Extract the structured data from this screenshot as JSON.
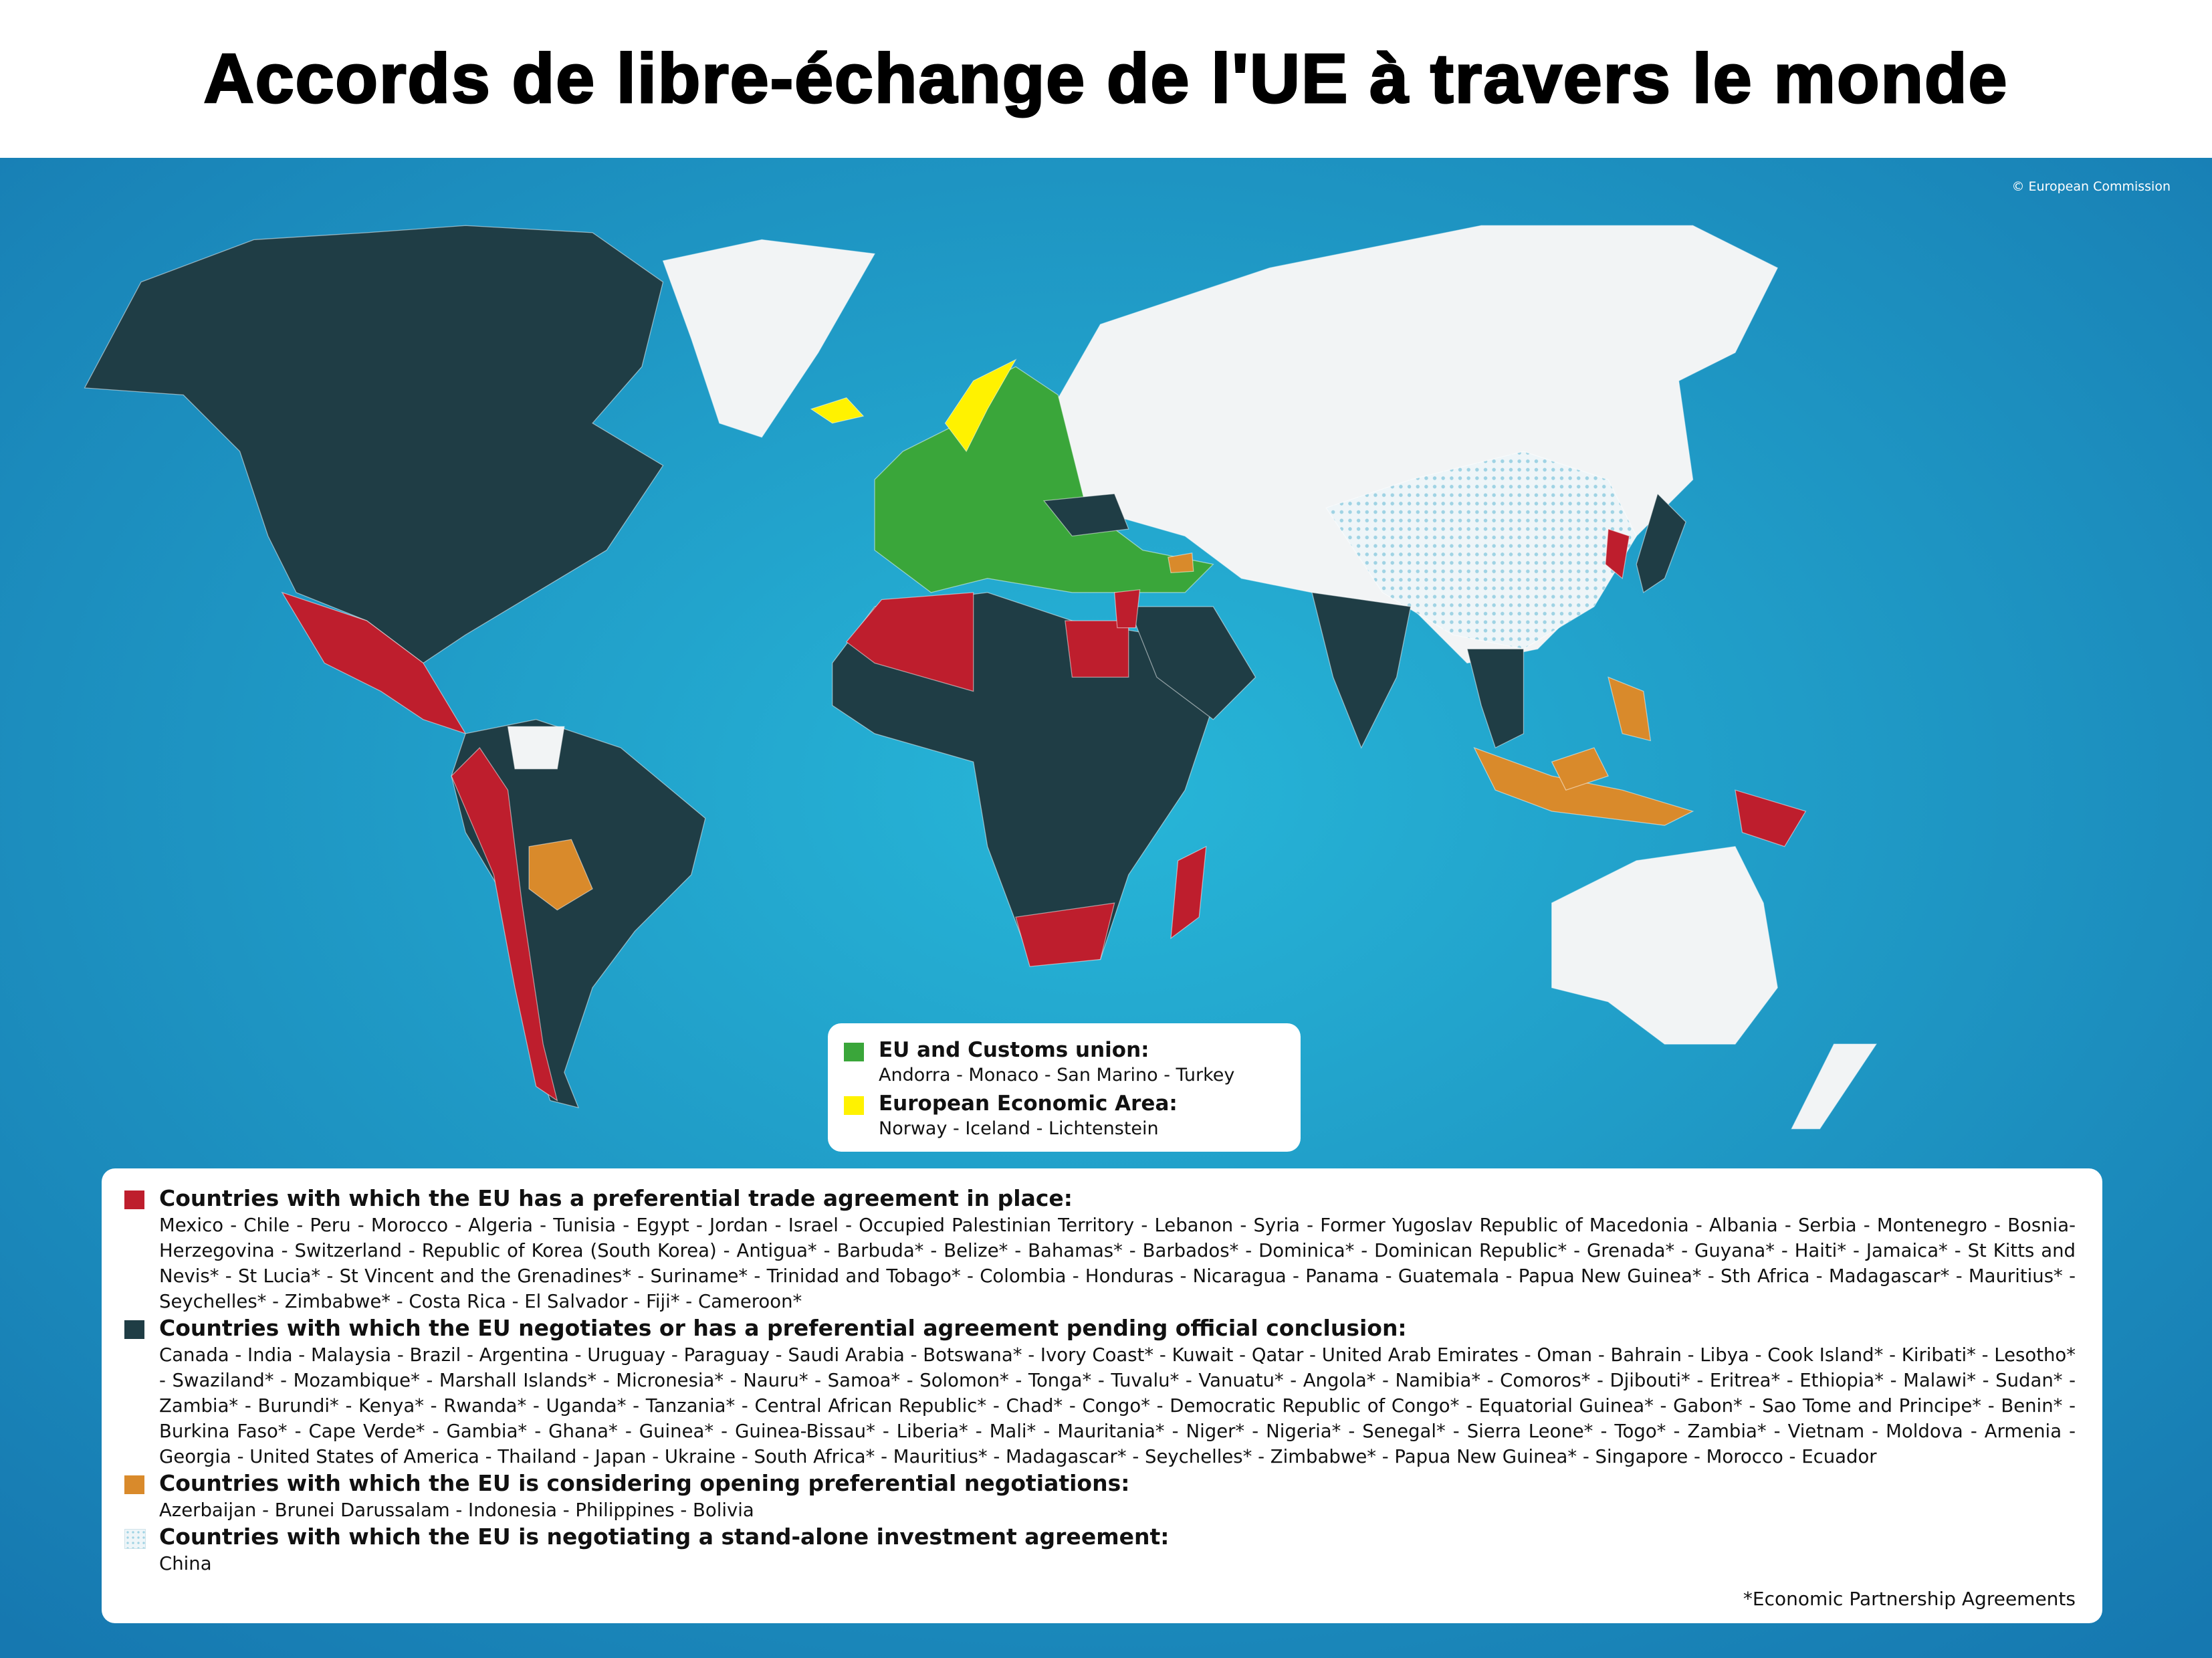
{
  "title": "Accords de libre-échange de l'UE à travers le monde",
  "credit": "© European Commission",
  "legend_top": {
    "items": [
      {
        "label": "EU and Customs union:",
        "countries": "Andorra - Monaco - San Marino - Turkey"
      },
      {
        "label": "European Economic Area:",
        "countries": "Norway - Iceland - Lichtenstein"
      }
    ]
  },
  "legend_bottom": {
    "items": [
      {
        "label": "Countries with which the EU has a preferential trade agreement in place:",
        "countries": "Mexico - Chile - Peru - Morocco - Algeria - Tunisia - Egypt - Jordan - Israel - Occupied Palestinian Territory - Lebanon - Syria - Former Yugoslav Republic of Macedonia - Albania - Serbia - Montenegro - Bosnia-Herzegovina - Switzerland - Republic of Korea (South Korea) - Antigua* - Barbuda* - Belize* - Bahamas* - Barbados* - Dominica* - Dominican Republic* - Grenada* - Guyana* - Haiti* - Jamaica* - St Kitts and Nevis* - St Lucia* - St Vincent and the Grenadines* - Suriname* - Trinidad and Tobago* - Colombia - Honduras - Nicaragua - Panama - Guatemala - Papua New Guinea* - Sth Africa - Madagascar* - Mauritius* - Seychelles* - Zimbabwe* - Costa Rica - El Salvador - Fiji* - Cameroon*"
      },
      {
        "label": "Countries with which the EU negotiates or has a preferential agreement pending official conclusion:",
        "countries": "Canada - India - Malaysia - Brazil - Argentina - Uruguay - Paraguay - Saudi Arabia - Botswana* - Ivory Coast* - Kuwait - Qatar - United Arab Emirates - Oman - Bahrain - Libya - Cook Island* - Kiribati* - Lesotho* - Swaziland* - Mozambique* - Marshall Islands* - Micronesia* - Nauru* - Samoa* - Solomon* - Tonga* - Tuvalu* - Vanuatu* - Angola* - Namibia* - Comoros* - Djibouti* - Eritrea* - Ethiopia* - Malawi* - Sudan* - Zambia* - Burundi* - Kenya* - Rwanda* - Uganda* - Tanzania* - Central African Republic* - Chad* - Congo* - Democratic Republic of Congo* - Equatorial Guinea* - Gabon* - Sao Tome and Principe* - Benin* - Burkina Faso* - Cape Verde* - Gambia* - Ghana* - Guinea* - Guinea-Bissau* - Liberia* - Mali* - Mauritania* - Niger* - Nigeria* - Senegal* - Sierra Leone* - Togo* - Zambia* - Vietnam - Moldova - Armenia - Georgia - United States of America - Thailand - Japan - Ukraine - South Africa* - Mauritius* - Madagascar* - Seychelles* - Zimbabwe* - Papua New Guinea* - Singapore - Morocco - Ecuador"
      },
      {
        "label": "Countries with which the EU is considering opening preferential negotiations:",
        "countries": "Azerbaijan - Brunei Darussalam - Indonesia - Philippines - Bolivia"
      },
      {
        "label": "Countries with which the EU is negotiating a stand-alone investment agreement:",
        "countries": "China"
      }
    ],
    "footnote": "*Economic Partnership Agreements"
  }
}
